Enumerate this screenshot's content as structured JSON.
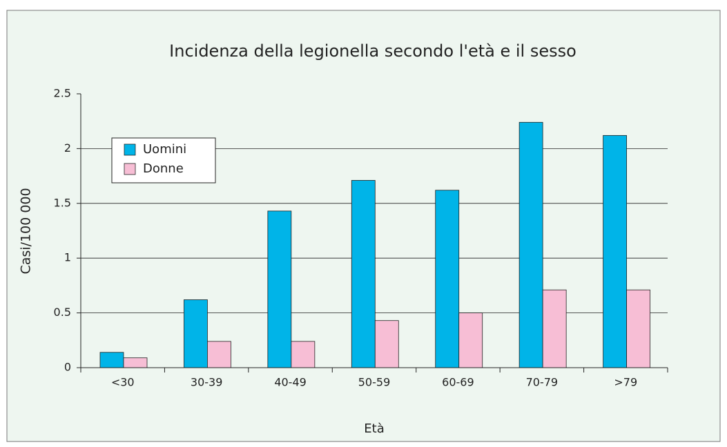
{
  "chart_data": {
    "type": "bar",
    "title": "Incidenza della legionella secondo l'età e il sesso",
    "x_label": "Età",
    "y_label": "Casi/100 000",
    "categories": [
      "<30",
      "30-39",
      "40-49",
      "50-59",
      "60-69",
      "70-79",
      ">79"
    ],
    "series": [
      {
        "name": "Uomini",
        "color": "#00b4e8",
        "values": [
          0.14,
          0.62,
          1.43,
          1.71,
          1.62,
          2.24,
          2.12
        ]
      },
      {
        "name": "Donne",
        "color": "#f7bed5",
        "values": [
          0.09,
          0.24,
          0.24,
          0.43,
          0.5,
          0.71,
          0.71
        ]
      }
    ],
    "ylim": [
      0,
      2.5
    ],
    "yticks": [
      0,
      0.5,
      1,
      1.5,
      2,
      2.5
    ],
    "grid": true,
    "legend": "upper left"
  }
}
